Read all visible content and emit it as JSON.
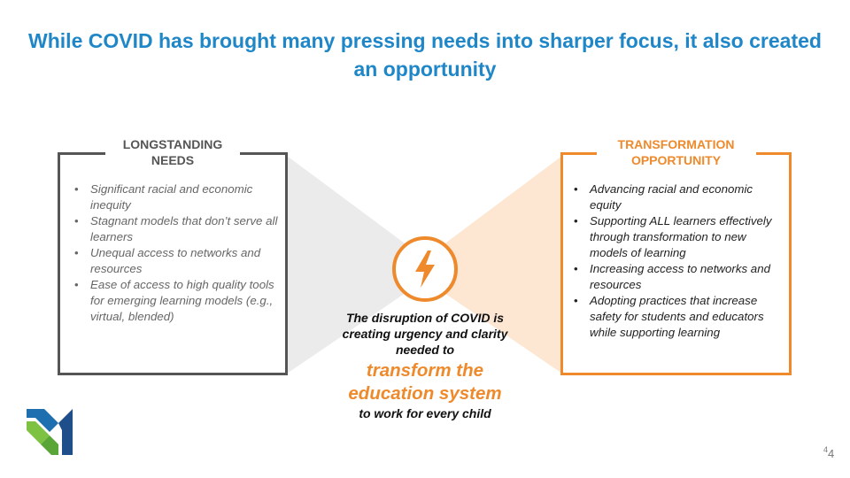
{
  "title": "While COVID has brought many pressing needs into sharper focus, it also created an opportunity",
  "left_box": {
    "label": "LONGSTANDING NEEDS",
    "items": [
      "Significant racial and economic inequity",
      "Stagnant models that don’t serve all learners",
      "Unequal access to networks and resources",
      "Ease of access to high quality tools for emerging learning models (e.g., virtual, blended)"
    ]
  },
  "right_box": {
    "label": "TRANSFORMATION OPPORTUNITY",
    "items": [
      "Advancing racial and economic equity",
      "Supporting ALL learners effectively through transformation to new models of learning",
      "Increasing access to networks and resources",
      "Adopting practices that increase safety for students and educators while supporting learning"
    ]
  },
  "center": {
    "icon": "lightning-bolt-icon",
    "line1": "The disruption of COVID is creating urgency and clarity needed to",
    "line2": "transform the education system",
    "line3": "to work for every child"
  },
  "page_number": "4",
  "page_number_sup": "4",
  "colors": {
    "title_blue": "#1f87c8",
    "accent_orange": "#ee8a2c",
    "gray": "#555555"
  }
}
